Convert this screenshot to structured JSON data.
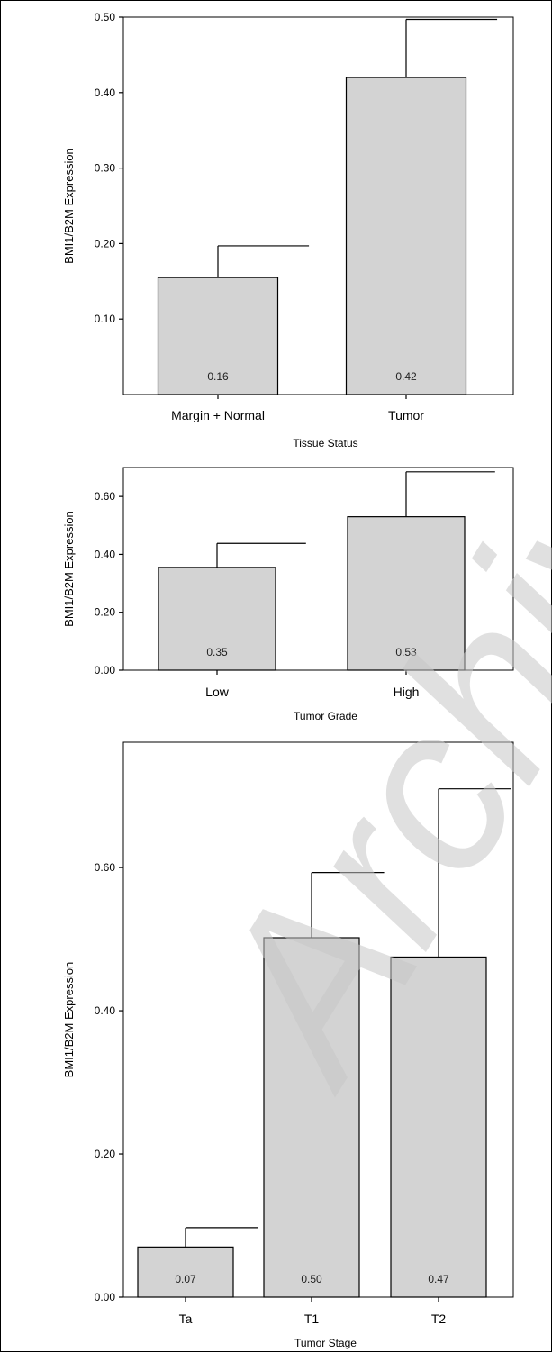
{
  "watermark": "Archive",
  "chart_data": [
    {
      "type": "bar",
      "categories": [
        "Margin + Normal",
        "Tumor"
      ],
      "values": [
        0.155,
        0.42
      ],
      "error_upper": [
        0.197,
        0.497
      ],
      "value_labels": [
        "0.16",
        "0.42"
      ],
      "title": "",
      "xlabel": "Tissue Status",
      "ylabel": "BMI1/B2M Expression",
      "ylim": [
        0,
        0.5
      ],
      "yticks": [
        0.1,
        0.2,
        0.3,
        0.4,
        0.5
      ],
      "ytick_labels": [
        "0.10",
        "0.20",
        "0.30",
        "0.40",
        "0.50"
      ],
      "bar_color": "#d3d3d3",
      "grid": false
    },
    {
      "type": "bar",
      "categories": [
        "Low",
        "High"
      ],
      "values": [
        0.355,
        0.53
      ],
      "error_upper": [
        0.438,
        0.685
      ],
      "value_labels": [
        "0.35",
        "0.53"
      ],
      "title": "",
      "xlabel": "Tumor Grade",
      "ylabel": "BMI1/B2M Expression",
      "ylim": [
        0,
        0.7
      ],
      "yticks": [
        0.0,
        0.2,
        0.4,
        0.6
      ],
      "ytick_labels": [
        "0.00",
        "0.20",
        "0.40",
        "0.60"
      ],
      "bar_color": "#d3d3d3",
      "grid": false
    },
    {
      "type": "bar",
      "categories": [
        "Ta",
        "T1",
        "T2"
      ],
      "values": [
        0.07,
        0.502,
        0.475
      ],
      "error_upper": [
        0.097,
        0.593,
        0.71
      ],
      "value_labels": [
        "0.07",
        "0.50",
        "0.47"
      ],
      "title": "",
      "xlabel": "Tumor Stage",
      "ylabel": "BMI1/B2M Expression",
      "ylim": [
        0,
        0.775
      ],
      "yticks": [
        0.0,
        0.2,
        0.4,
        0.6
      ],
      "ytick_labels": [
        "0.00",
        "0.20",
        "0.40",
        "0.60"
      ],
      "bar_color": "#d3d3d3",
      "grid": false
    }
  ]
}
